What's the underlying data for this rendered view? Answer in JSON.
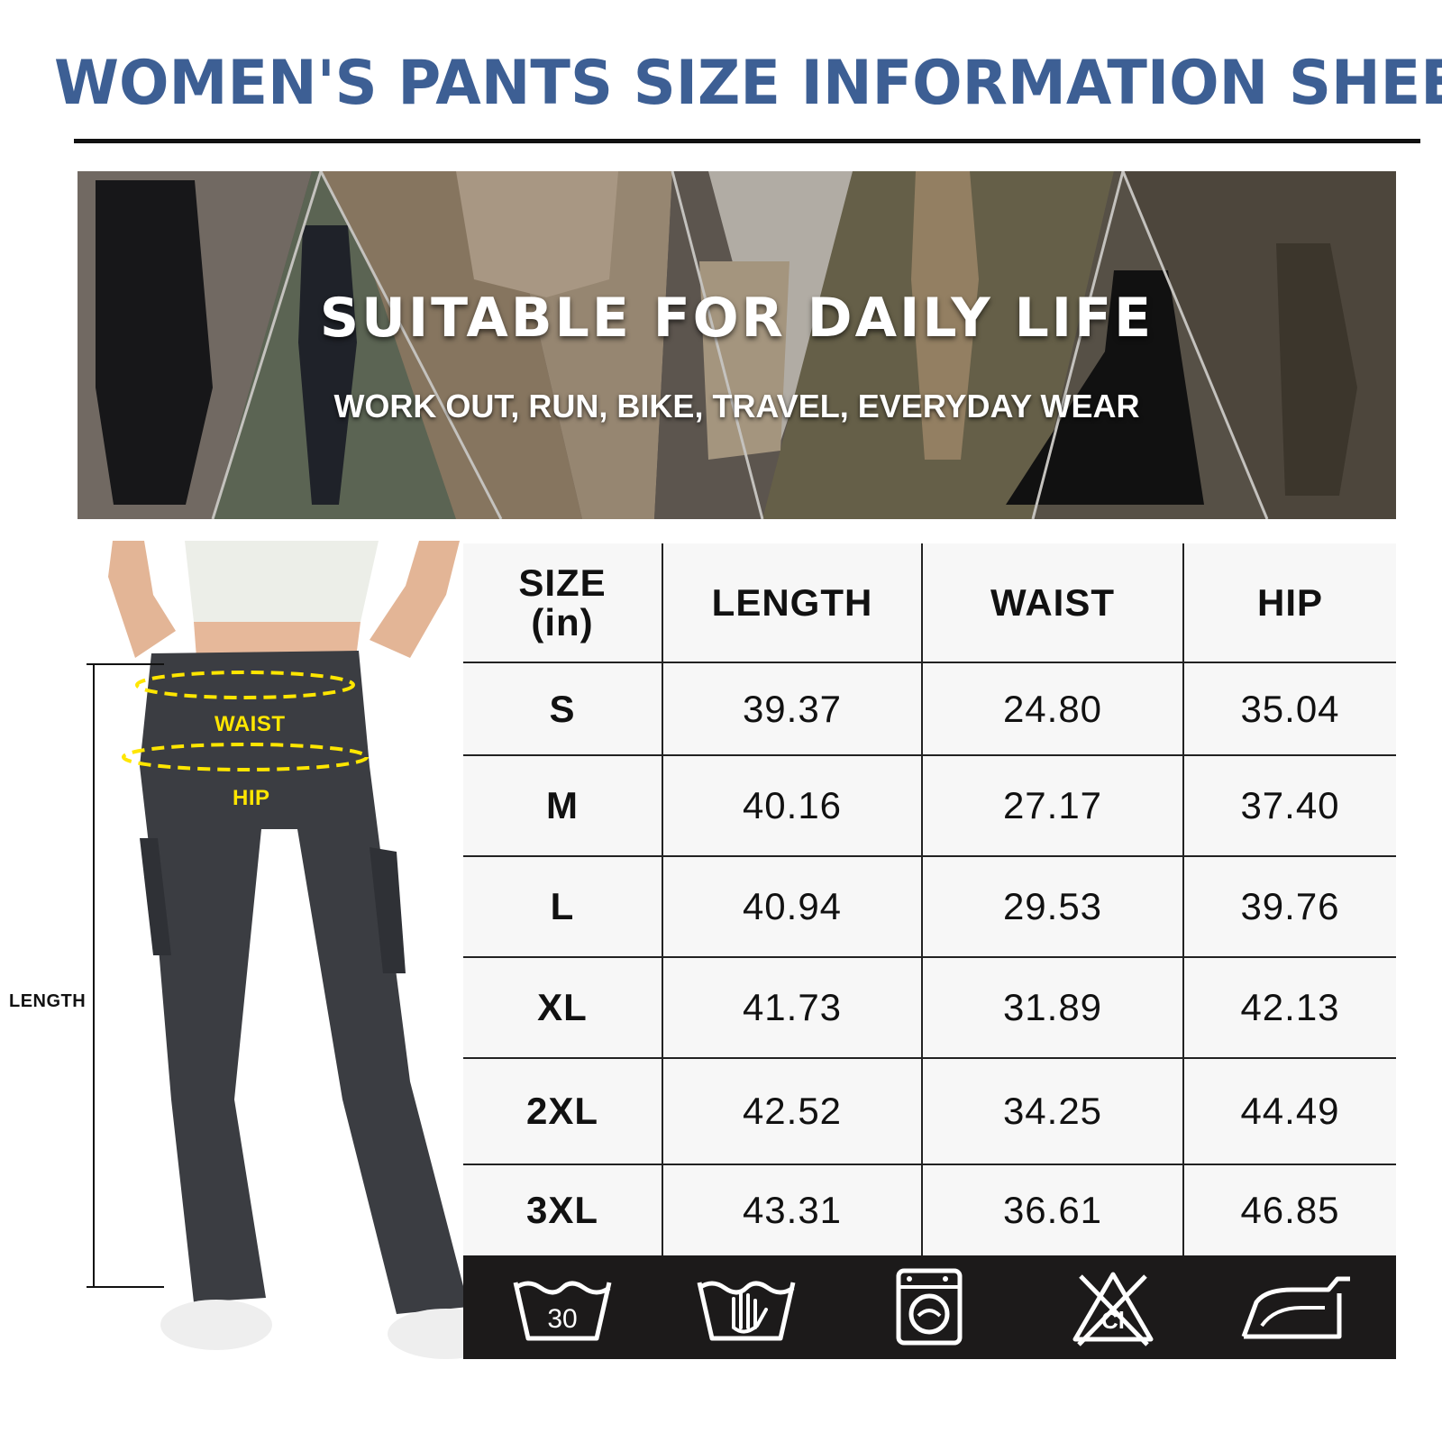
{
  "title": "WOMEN'S PANTS SIZE INFORMATION SHEET",
  "banner": {
    "headline": "SUITABLE FOR DAILY LIFE",
    "subline": "WORK OUT, RUN, BIKE, TRAVEL, EVERYDAY WEAR"
  },
  "figure": {
    "waist_label": "WAIST",
    "hip_label": "HIP",
    "length_label": "LENGTH"
  },
  "table": {
    "headers": [
      "SIZE\n(in)",
      "LENGTH",
      "WAIST",
      "HIP"
    ],
    "header_size_line1": "SIZE",
    "header_size_line2": "(in)",
    "rows": [
      {
        "size": "S",
        "length": "39.37",
        "waist": "24.80",
        "hip": "35.04"
      },
      {
        "size": "M",
        "length": "40.16",
        "waist": "27.17",
        "hip": "37.40"
      },
      {
        "size": "L",
        "length": "40.94",
        "waist": "29.53",
        "hip": "39.76"
      },
      {
        "size": "XL",
        "length": "41.73",
        "waist": "31.89",
        "hip": "42.13"
      },
      {
        "size": "2XL",
        "length": "42.52",
        "waist": "34.25",
        "hip": "44.49"
      },
      {
        "size": "3XL",
        "length": "43.31",
        "waist": "36.61",
        "hip": "46.85"
      }
    ]
  },
  "care": {
    "icons": [
      "wash-30-icon",
      "hand-wash-icon",
      "machine-wash-icon",
      "do-not-bleach-icon",
      "iron-icon"
    ],
    "wash_temp": "30",
    "bleach_mark": "Cl"
  },
  "colors": {
    "title": "#3d5f94",
    "measure_guide": "#ffe600",
    "care_strip": "#1c1a1a",
    "pants": "#3b3d42"
  }
}
